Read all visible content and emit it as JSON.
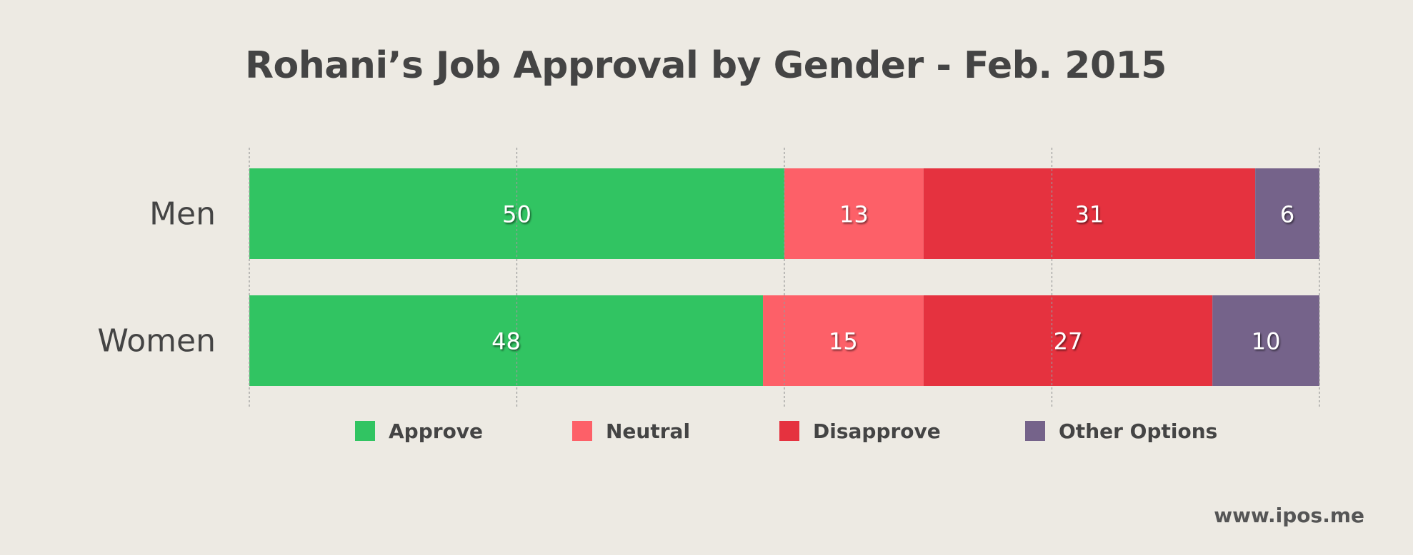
{
  "title": "Rohani’s Job Approval by Gender - Feb. 2015",
  "watermark": "www.ipos.me",
  "colors": {
    "background": "#edeae3",
    "approve": "#31c462",
    "neutral": "#fd6068",
    "disapprove": "#e5323f",
    "other": "#75638a",
    "text": "#444444"
  },
  "legend": [
    {
      "label": "Approve",
      "color": "#31c462"
    },
    {
      "label": "Neutral",
      "color": "#fd6068"
    },
    {
      "label": "Disapprove",
      "color": "#e5323f"
    },
    {
      "label": "Other Options",
      "color": "#75638a"
    }
  ],
  "chart_data": {
    "type": "bar",
    "orientation": "horizontal",
    "stacked": true,
    "categories": [
      "Men",
      "Women"
    ],
    "series": [
      {
        "name": "Approve",
        "values": [
          50,
          48
        ]
      },
      {
        "name": "Neutral",
        "values": [
          13,
          15
        ]
      },
      {
        "name": "Disapprove",
        "values": [
          31,
          27
        ]
      },
      {
        "name": "Other Options",
        "values": [
          6,
          10
        ]
      }
    ],
    "xlim": [
      0,
      100
    ],
    "grid": true,
    "legend_position": "bottom"
  }
}
